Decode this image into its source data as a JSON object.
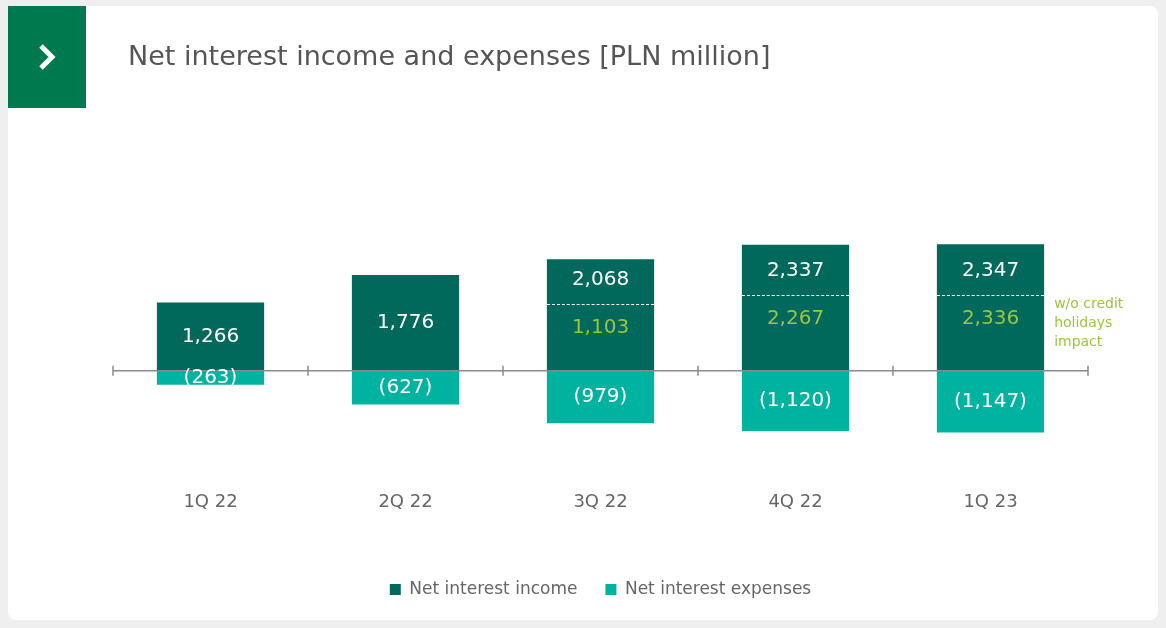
{
  "chart_data": {
    "type": "bar",
    "title": "Net interest income and expenses [PLN million]",
    "categories": [
      "1Q 22",
      "2Q 22",
      "3Q 22",
      "4Q 22",
      "1Q 23"
    ],
    "stacked": true,
    "tick_labels": "x",
    "grid": false,
    "legend": "bottom",
    "series": [
      {
        "name": "Net interest income",
        "color": "#00695c",
        "values": [
          1266,
          1776,
          2068,
          2337,
          2347
        ],
        "value_labels": [
          "1,266",
          "1,776",
          "2,068",
          "2,337",
          "2,347"
        ]
      },
      {
        "name": "Net interest expenses",
        "color": "#00b3a1",
        "values": [
          -263,
          -627,
          -979,
          -1120,
          -1147
        ],
        "value_labels": [
          "(263)",
          "(627)",
          "(979)",
          "(1,120)",
          "(1,147)"
        ]
      }
    ],
    "annotations": [
      "1,103",
      "2,267",
      "2,336",
      "w/o credit holidays impact"
    ]
  }
}
